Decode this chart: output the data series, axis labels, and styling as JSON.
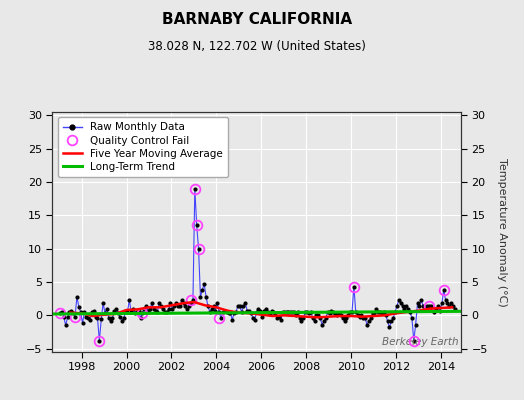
{
  "title": "BARNABY CALIFORNIA",
  "subtitle": "38.028 N, 122.702 W (United States)",
  "ylabel": "Temperature Anomaly (°C)",
  "watermark": "Berkeley Earth",
  "xlim": [
    1996.7,
    2014.9
  ],
  "ylim": [
    -5.5,
    30.5
  ],
  "yticks": [
    -5,
    0,
    5,
    10,
    15,
    20,
    25,
    30
  ],
  "xticks": [
    1998,
    2000,
    2002,
    2004,
    2006,
    2008,
    2010,
    2012,
    2014
  ],
  "background_color": "#e8e8e8",
  "grid_color": "#ffffff",
  "raw_color": "#4444ff",
  "raw_marker_color": "#000000",
  "qc_fail_color": "#ff44ff",
  "moving_avg_color": "#ff0000",
  "trend_color": "#00bb00",
  "raw_data_x": [
    1997.042,
    1997.125,
    1997.208,
    1997.292,
    1997.375,
    1997.458,
    1997.542,
    1997.625,
    1997.708,
    1997.792,
    1997.875,
    1997.958,
    1998.042,
    1998.125,
    1998.208,
    1998.292,
    1998.375,
    1998.458,
    1998.542,
    1998.625,
    1998.708,
    1998.792,
    1998.875,
    1998.958,
    1999.042,
    1999.125,
    1999.208,
    1999.292,
    1999.375,
    1999.458,
    1999.542,
    1999.625,
    1999.708,
    1999.792,
    1999.875,
    1999.958,
    2000.042,
    2000.125,
    2000.208,
    2000.292,
    2000.375,
    2000.458,
    2000.542,
    2000.625,
    2000.708,
    2000.792,
    2000.875,
    2000.958,
    2001.042,
    2001.125,
    2001.208,
    2001.292,
    2001.375,
    2001.458,
    2001.542,
    2001.625,
    2001.708,
    2001.792,
    2001.875,
    2001.958,
    2002.042,
    2002.125,
    2002.208,
    2002.292,
    2002.375,
    2002.458,
    2002.542,
    2002.625,
    2002.708,
    2002.792,
    2002.875,
    2002.958,
    2003.042,
    2003.125,
    2003.208,
    2003.292,
    2003.375,
    2003.458,
    2003.542,
    2003.625,
    2003.708,
    2003.792,
    2003.875,
    2003.958,
    2004.042,
    2004.125,
    2004.208,
    2004.292,
    2004.375,
    2004.458,
    2004.542,
    2004.625,
    2004.708,
    2004.792,
    2004.875,
    2004.958,
    2005.042,
    2005.125,
    2005.208,
    2005.292,
    2005.375,
    2005.458,
    2005.542,
    2005.625,
    2005.708,
    2005.792,
    2005.875,
    2005.958,
    2006.042,
    2006.125,
    2006.208,
    2006.292,
    2006.375,
    2006.458,
    2006.542,
    2006.625,
    2006.708,
    2006.792,
    2006.875,
    2006.958,
    2007.042,
    2007.125,
    2007.208,
    2007.292,
    2007.375,
    2007.458,
    2007.542,
    2007.625,
    2007.708,
    2007.792,
    2007.875,
    2007.958,
    2008.042,
    2008.125,
    2008.208,
    2008.292,
    2008.375,
    2008.458,
    2008.542,
    2008.625,
    2008.708,
    2008.792,
    2008.875,
    2008.958,
    2009.042,
    2009.125,
    2009.208,
    2009.292,
    2009.375,
    2009.458,
    2009.542,
    2009.625,
    2009.708,
    2009.792,
    2009.875,
    2009.958,
    2010.042,
    2010.125,
    2010.208,
    2010.292,
    2010.375,
    2010.458,
    2010.542,
    2010.625,
    2010.708,
    2010.792,
    2010.875,
    2010.958,
    2011.042,
    2011.125,
    2011.208,
    2011.292,
    2011.375,
    2011.458,
    2011.542,
    2011.625,
    2011.708,
    2011.792,
    2011.875,
    2011.958,
    2012.042,
    2012.125,
    2012.208,
    2012.292,
    2012.375,
    2012.458,
    2012.542,
    2012.625,
    2012.708,
    2012.792,
    2012.875,
    2012.958,
    2013.042,
    2013.125,
    2013.208,
    2013.292,
    2013.375,
    2013.458,
    2013.542,
    2013.625,
    2013.708,
    2013.792,
    2013.875,
    2013.958,
    2014.042,
    2014.125,
    2014.208,
    2014.292,
    2014.375,
    2014.458,
    2014.542,
    2014.625
  ],
  "raw_data_y": [
    0.4,
    0.5,
    -0.3,
    -1.5,
    -0.3,
    0.5,
    0.7,
    0.4,
    -0.2,
    2.8,
    1.3,
    0.5,
    -1.2,
    0.5,
    -0.2,
    -0.4,
    -0.7,
    0.5,
    0.7,
    -0.2,
    -0.4,
    -3.8,
    -0.6,
    1.8,
    0.4,
    1.0,
    -0.4,
    -0.9,
    -0.4,
    0.7,
    0.9,
    0.4,
    -0.2,
    -0.8,
    -0.4,
    0.5,
    0.5,
    2.3,
    0.5,
    0.9,
    0.4,
    0.5,
    0.7,
    -0.4,
    0.4,
    0.9,
    1.4,
    0.7,
    0.9,
    1.8,
    0.9,
    0.7,
    0.5,
    1.8,
    1.4,
    0.9,
    0.5,
    0.5,
    0.9,
    1.8,
    0.9,
    1.4,
    1.8,
    1.4,
    1.4,
    2.3,
    1.8,
    1.4,
    0.9,
    1.4,
    1.8,
    2.3,
    19.0,
    13.5,
    10.0,
    2.8,
    3.8,
    4.7,
    2.8,
    1.4,
    0.5,
    0.9,
    1.4,
    0.7,
    1.8,
    0.5,
    -0.4,
    0.5,
    0.7,
    0.5,
    0.4,
    0.4,
    -0.7,
    0.4,
    0.5,
    1.4,
    1.4,
    0.5,
    1.4,
    1.8,
    0.7,
    0.7,
    0.4,
    -0.4,
    -0.7,
    0.5,
    0.9,
    0.7,
    -0.2,
    0.7,
    0.9,
    0.5,
    0.4,
    0.7,
    0.5,
    0.4,
    -0.4,
    -0.2,
    -0.7,
    0.5,
    0.5,
    0.5,
    0.5,
    0.5,
    0.5,
    0.5,
    0.1,
    0.5,
    -0.4,
    -0.9,
    -0.4,
    0.5,
    0.5,
    0.4,
    0.5,
    -0.4,
    -0.9,
    0.1,
    0.1,
    -0.4,
    -1.4,
    -0.9,
    -0.4,
    0.5,
    0.4,
    0.7,
    0.5,
    0.4,
    0.1,
    0.4,
    0.1,
    -0.4,
    -0.9,
    -0.4,
    0.1,
    0.5,
    0.5,
    4.3,
    0.5,
    0.1,
    -0.2,
    0.1,
    -0.4,
    -0.4,
    -1.4,
    -0.9,
    -0.4,
    0.4,
    0.4,
    0.9,
    0.5,
    0.5,
    0.4,
    0.5,
    0.1,
    -0.9,
    -1.8,
    -0.9,
    -0.4,
    0.5,
    1.4,
    2.3,
    1.8,
    1.4,
    0.9,
    1.4,
    0.9,
    0.5,
    -0.4,
    -3.8,
    -1.4,
    1.8,
    1.4,
    2.3,
    1.4,
    0.9,
    1.4,
    1.4,
    1.4,
    0.9,
    0.5,
    0.9,
    1.4,
    0.7,
    1.8,
    3.8,
    2.3,
    1.8,
    1.4,
    1.8,
    1.4,
    0.9
  ],
  "qc_fail_x": [
    1997.042,
    1997.708,
    1998.792,
    2000.708,
    2002.875,
    2003.042,
    2003.125,
    2003.208,
    2004.125,
    2010.125,
    2012.792,
    2013.458,
    2014.125
  ],
  "qc_fail_y": [
    0.4,
    -0.2,
    -3.8,
    0.4,
    2.3,
    19.0,
    13.5,
    10.0,
    -0.4,
    4.3,
    -3.8,
    1.4,
    3.8
  ],
  "moving_avg_x": [
    1997.5,
    1998.0,
    1998.5,
    1999.0,
    1999.5,
    2000.0,
    2000.5,
    2001.0,
    2001.5,
    2002.0,
    2002.5,
    2003.0,
    2003.5,
    2004.0,
    2004.5,
    2005.0,
    2005.5,
    2006.0,
    2006.5,
    2007.0,
    2007.5,
    2008.0,
    2008.5,
    2009.0,
    2009.5,
    2010.0,
    2010.5,
    2011.0,
    2011.5,
    2012.0,
    2012.5,
    2013.0,
    2013.5,
    2014.5
  ],
  "moving_avg_y": [
    0.4,
    0.3,
    -0.1,
    0.1,
    0.2,
    0.8,
    0.9,
    1.2,
    1.2,
    1.5,
    1.8,
    2.0,
    1.5,
    1.2,
    0.7,
    0.4,
    0.3,
    0.1,
    -0.1,
    0.0,
    -0.1,
    -0.2,
    -0.3,
    -0.2,
    -0.1,
    -0.1,
    -0.2,
    -0.1,
    0.0,
    0.3,
    0.5,
    0.7,
    1.0,
    1.2
  ],
  "trend_x": [
    1996.7,
    2014.9
  ],
  "trend_y": [
    0.2,
    0.6
  ]
}
